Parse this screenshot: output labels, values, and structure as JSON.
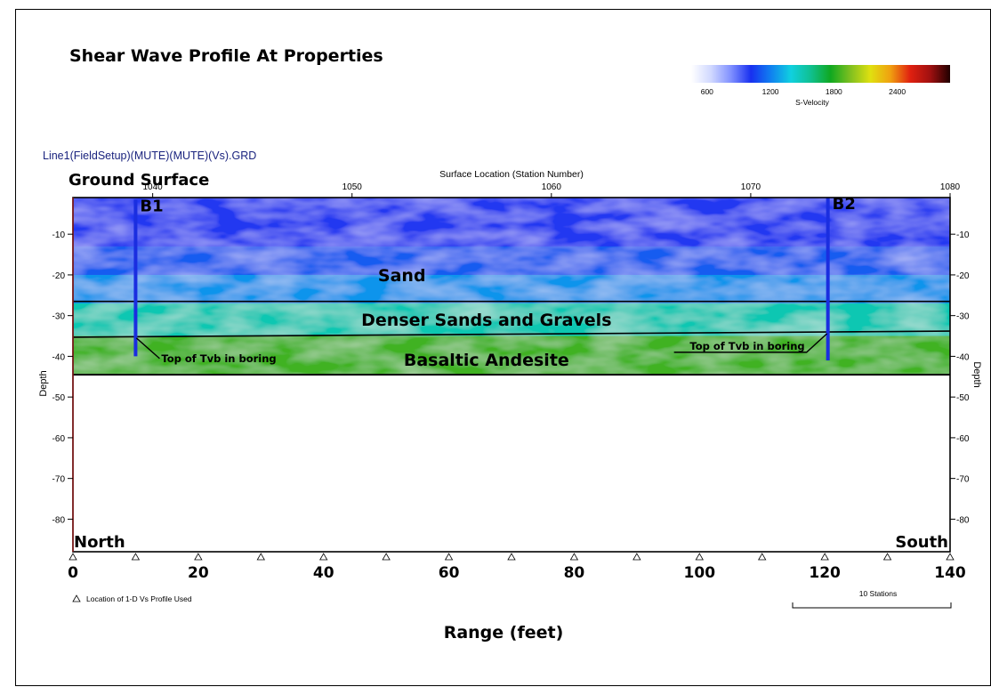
{
  "chart_data": {
    "type": "heatmap",
    "title": "Shear Wave Profile At Properties",
    "grid_file": "Line1(FieldSetup)(MUTE)(MUTE)(Vs).GRD",
    "surface_label": "Ground Surface",
    "x_top_axis": {
      "label": "Surface Location (Station Number)",
      "ticks": [
        1040,
        1050,
        1060,
        1070,
        1080
      ],
      "range": [
        1036.0,
        1080.0
      ]
    },
    "x_bottom_axis": {
      "label": "Range (feet)",
      "ticks": [
        0,
        20,
        40,
        60,
        80,
        100,
        120,
        140
      ],
      "range": [
        0,
        140
      ]
    },
    "y_axis": {
      "label": "Depth",
      "ticks": [
        -10,
        -20,
        -30,
        -40,
        -50,
        -60,
        -70,
        -80
      ],
      "range": [
        -1,
        -88
      ]
    },
    "colorbar": {
      "label": "S-Velocity",
      "ticks": [
        600,
        1200,
        1800,
        2400
      ],
      "range": [
        450,
        2900
      ],
      "colors": [
        "#ffffff",
        "#d0d8ff",
        "#8090ff",
        "#1830f0",
        "#1080f0",
        "#10d0e0",
        "#10c090",
        "#10a820",
        "#80c020",
        "#e0e010",
        "#f0a010",
        "#e02010",
        "#a01010",
        "#200000"
      ]
    },
    "velocity_bands": [
      {
        "top": -1,
        "bottom": -13,
        "velocity": 1000
      },
      {
        "top": -13,
        "bottom": -20,
        "velocity": 1120
      },
      {
        "top": -20,
        "bottom": -27,
        "velocity": 1250
      },
      {
        "top": -27,
        "bottom": -35,
        "velocity": 1500
      },
      {
        "top": -35,
        "bottom": -46,
        "velocity": 1850
      }
    ],
    "layer_boundaries": [
      {
        "points": [
          [
            0,
            -26.5
          ],
          [
            140,
            -26.5
          ]
        ]
      },
      {
        "points": [
          [
            0,
            -35.3
          ],
          [
            140,
            -33.8
          ]
        ]
      }
    ],
    "data_bottom_depth": -46,
    "layers": [
      {
        "name": "Sand",
        "x": 52.5,
        "y": -20
      },
      {
        "name": "Denser Sands and Gravels",
        "x": 66,
        "y": -31
      },
      {
        "name": "Basaltic Andesite",
        "x": 66,
        "y": -40.8
      }
    ],
    "borings": [
      {
        "name": "B1",
        "x": 10,
        "top": -1.5,
        "bottom": -40,
        "tvb_depth": -35.3,
        "tvb_label": "Top of Tvb in boring",
        "label_side": "right"
      },
      {
        "name": "B2",
        "x": 120.5,
        "top": -1,
        "bottom": -41,
        "tvb_depth": -34.2,
        "tvb_label": "Top of Tvb in boring",
        "label_side": "left"
      }
    ],
    "profile_locations": [
      0,
      10,
      20,
      30,
      40,
      50,
      60,
      70,
      80,
      90,
      100,
      110,
      120,
      130,
      140
    ],
    "profile_legend": "Location of 1-D Vs Profile Used",
    "corner_labels": {
      "left": "North",
      "right": "South"
    },
    "scale_bar": {
      "label": "10 Stations"
    }
  }
}
